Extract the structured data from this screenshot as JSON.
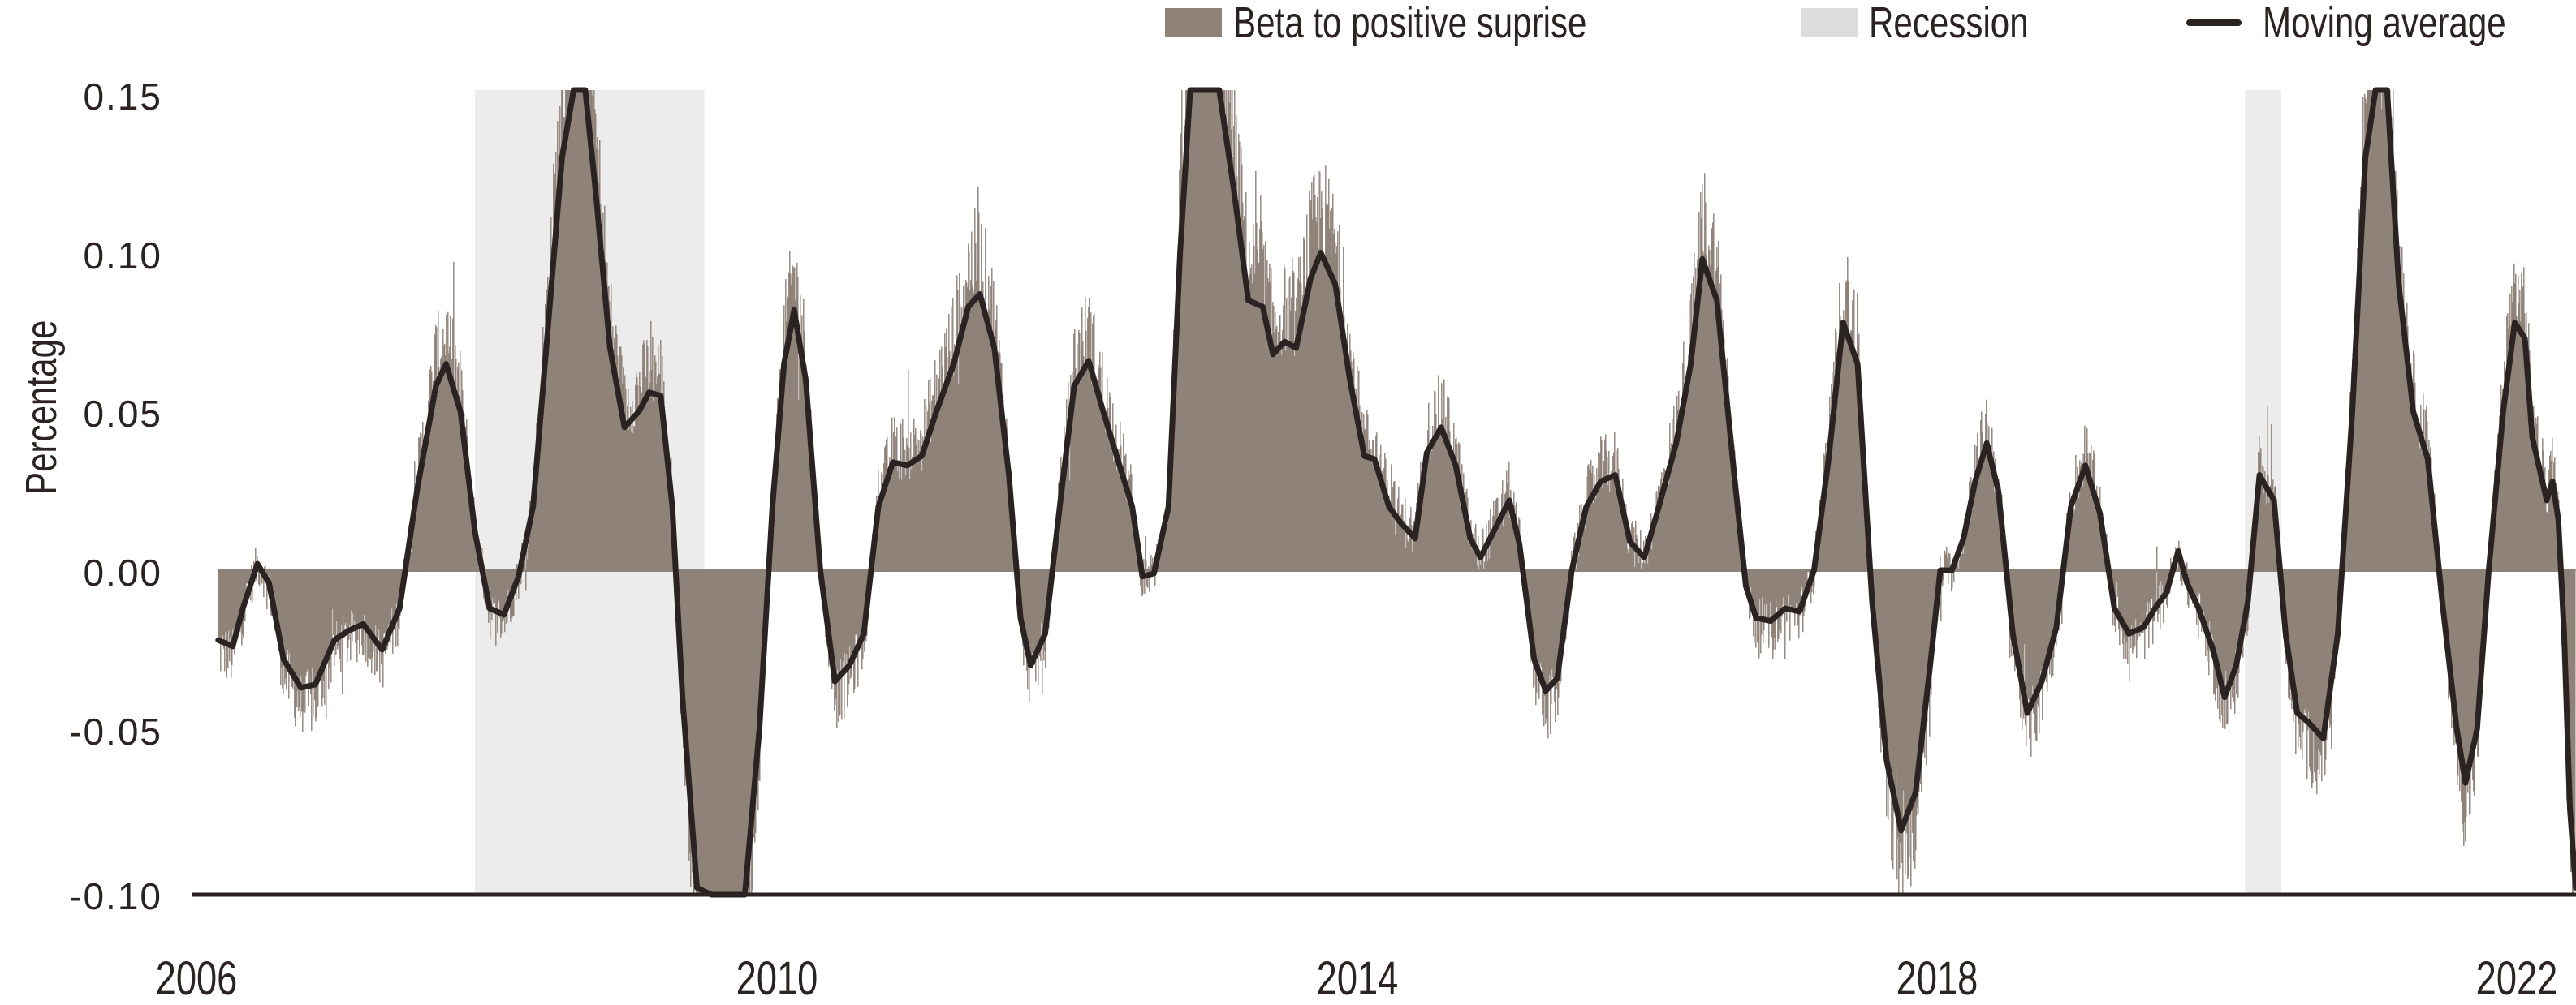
{
  "chart_data": {
    "type": "bar",
    "title": "",
    "xlabel": "",
    "ylabel": "Percentage",
    "ylim": [
      -0.1,
      0.15
    ],
    "xlim": [
      2006,
      2022.4
    ],
    "grid": false,
    "legend_position": "top-right",
    "legend": [
      {
        "label": "Beta to positive suprise",
        "kind": "bar",
        "color": "#8f8279"
      },
      {
        "label": "Recession",
        "kind": "area",
        "color": "#dcdcdc"
      },
      {
        "label": "Moving average",
        "kind": "line",
        "color": "#2b2321"
      }
    ],
    "yticks": [
      "0.15",
      "0.10",
      "0.05",
      "0.00",
      "-0.05",
      "-0.10"
    ],
    "ytick_values": [
      0.15,
      0.1,
      0.05,
      0.0,
      -0.05,
      -0.1
    ],
    "xticks": [
      "2006",
      "2010",
      "2014",
      "2018",
      "2022"
    ],
    "xtick_values": [
      2006,
      2010,
      2014,
      2018,
      2022
    ],
    "recessions": [
      {
        "start": 2007.92,
        "end": 2009.5
      },
      {
        "start": 2020.12,
        "end": 2020.37
      }
    ],
    "series": [
      {
        "name": "Moving average",
        "type": "line",
        "color": "#2b2321",
        "points": [
          [
            2006.15,
            -0.022
          ],
          [
            2006.25,
            -0.024
          ],
          [
            2006.32,
            -0.012
          ],
          [
            2006.42,
            0.002
          ],
          [
            2006.5,
            -0.004
          ],
          [
            2006.6,
            -0.028
          ],
          [
            2006.72,
            -0.037
          ],
          [
            2006.82,
            -0.036
          ],
          [
            2006.95,
            -0.022
          ],
          [
            2007.05,
            -0.019
          ],
          [
            2007.15,
            -0.017
          ],
          [
            2007.28,
            -0.025
          ],
          [
            2007.4,
            -0.012
          ],
          [
            2007.52,
            0.025
          ],
          [
            2007.65,
            0.058
          ],
          [
            2007.72,
            0.065
          ],
          [
            2007.82,
            0.05
          ],
          [
            2007.92,
            0.012
          ],
          [
            2008.02,
            -0.012
          ],
          [
            2008.12,
            -0.014
          ],
          [
            2008.22,
            -0.002
          ],
          [
            2008.32,
            0.02
          ],
          [
            2008.42,
            0.075
          ],
          [
            2008.52,
            0.13
          ],
          [
            2008.6,
            0.165
          ],
          [
            2008.68,
            0.16
          ],
          [
            2008.75,
            0.12
          ],
          [
            2008.85,
            0.07
          ],
          [
            2008.95,
            0.045
          ],
          [
            2009.05,
            0.05
          ],
          [
            2009.12,
            0.056
          ],
          [
            2009.2,
            0.055
          ],
          [
            2009.28,
            0.02
          ],
          [
            2009.35,
            -0.04
          ],
          [
            2009.45,
            -0.1
          ],
          [
            2009.55,
            -0.12
          ],
          [
            2009.68,
            -0.12
          ],
          [
            2009.78,
            -0.105
          ],
          [
            2009.88,
            -0.05
          ],
          [
            2009.97,
            0.02
          ],
          [
            2010.05,
            0.065
          ],
          [
            2010.12,
            0.082
          ],
          [
            2010.2,
            0.06
          ],
          [
            2010.3,
            0.0
          ],
          [
            2010.4,
            -0.035
          ],
          [
            2010.5,
            -0.03
          ],
          [
            2010.6,
            -0.02
          ],
          [
            2010.7,
            0.02
          ],
          [
            2010.8,
            0.034
          ],
          [
            2010.9,
            0.033
          ],
          [
            2011.0,
            0.036
          ],
          [
            2011.1,
            0.05
          ],
          [
            2011.22,
            0.065
          ],
          [
            2011.32,
            0.083
          ],
          [
            2011.4,
            0.087
          ],
          [
            2011.5,
            0.07
          ],
          [
            2011.6,
            0.03
          ],
          [
            2011.68,
            -0.015
          ],
          [
            2011.75,
            -0.03
          ],
          [
            2011.85,
            -0.02
          ],
          [
            2011.95,
            0.02
          ],
          [
            2012.05,
            0.058
          ],
          [
            2012.15,
            0.066
          ],
          [
            2012.25,
            0.05
          ],
          [
            2012.35,
            0.035
          ],
          [
            2012.45,
            0.02
          ],
          [
            2012.52,
            -0.002
          ],
          [
            2012.6,
            -0.001
          ],
          [
            2012.7,
            0.02
          ],
          [
            2012.78,
            0.1
          ],
          [
            2012.85,
            0.155
          ],
          [
            2012.95,
            0.17
          ],
          [
            2013.05,
            0.155
          ],
          [
            2013.15,
            0.12
          ],
          [
            2013.25,
            0.085
          ],
          [
            2013.35,
            0.083
          ],
          [
            2013.42,
            0.068
          ],
          [
            2013.5,
            0.072
          ],
          [
            2013.58,
            0.07
          ],
          [
            2013.68,
            0.092
          ],
          [
            2013.75,
            0.1
          ],
          [
            2013.85,
            0.09
          ],
          [
            2013.95,
            0.06
          ],
          [
            2014.05,
            0.036
          ],
          [
            2014.12,
            0.035
          ],
          [
            2014.22,
            0.02
          ],
          [
            2014.3,
            0.015
          ],
          [
            2014.4,
            0.01
          ],
          [
            2014.48,
            0.037
          ],
          [
            2014.58,
            0.045
          ],
          [
            2014.68,
            0.033
          ],
          [
            2014.78,
            0.01
          ],
          [
            2014.85,
            0.004
          ],
          [
            2014.95,
            0.013
          ],
          [
            2015.05,
            0.022
          ],
          [
            2015.12,
            0.008
          ],
          [
            2015.22,
            -0.028
          ],
          [
            2015.3,
            -0.038
          ],
          [
            2015.38,
            -0.034
          ],
          [
            2015.48,
            0.0
          ],
          [
            2015.58,
            0.02
          ],
          [
            2015.68,
            0.028
          ],
          [
            2015.78,
            0.03
          ],
          [
            2015.88,
            0.009
          ],
          [
            2015.98,
            0.004
          ],
          [
            2016.08,
            0.02
          ],
          [
            2016.2,
            0.04
          ],
          [
            2016.3,
            0.065
          ],
          [
            2016.38,
            0.098
          ],
          [
            2016.48,
            0.085
          ],
          [
            2016.6,
            0.03
          ],
          [
            2016.68,
            -0.005
          ],
          [
            2016.75,
            -0.015
          ],
          [
            2016.85,
            -0.016
          ],
          [
            2016.95,
            -0.012
          ],
          [
            2017.05,
            -0.013
          ],
          [
            2017.15,
            0.0
          ],
          [
            2017.25,
            0.035
          ],
          [
            2017.35,
            0.078
          ],
          [
            2017.45,
            0.065
          ],
          [
            2017.55,
            -0.01
          ],
          [
            2017.65,
            -0.06
          ],
          [
            2017.75,
            -0.082
          ],
          [
            2017.85,
            -0.07
          ],
          [
            2017.95,
            -0.03
          ],
          [
            2018.02,
            0.0
          ],
          [
            2018.1,
            0.0
          ],
          [
            2018.18,
            0.01
          ],
          [
            2018.26,
            0.028
          ],
          [
            2018.34,
            0.04
          ],
          [
            2018.42,
            0.025
          ],
          [
            2018.52,
            -0.02
          ],
          [
            2018.62,
            -0.045
          ],
          [
            2018.72,
            -0.035
          ],
          [
            2018.82,
            -0.018
          ],
          [
            2018.92,
            0.02
          ],
          [
            2019.02,
            0.033
          ],
          [
            2019.12,
            0.018
          ],
          [
            2019.22,
            -0.012
          ],
          [
            2019.32,
            -0.02
          ],
          [
            2019.42,
            -0.018
          ],
          [
            2019.5,
            -0.012
          ],
          [
            2019.58,
            -0.007
          ],
          [
            2019.66,
            0.006
          ],
          [
            2019.72,
            -0.004
          ],
          [
            2019.8,
            -0.012
          ],
          [
            2019.9,
            -0.025
          ],
          [
            2019.98,
            -0.04
          ],
          [
            2020.06,
            -0.03
          ],
          [
            2020.14,
            -0.01
          ],
          [
            2020.22,
            0.03
          ],
          [
            2020.32,
            0.022
          ],
          [
            2020.4,
            -0.02
          ],
          [
            2020.48,
            -0.045
          ],
          [
            2020.56,
            -0.048
          ],
          [
            2020.66,
            -0.053
          ],
          [
            2020.76,
            -0.02
          ],
          [
            2020.86,
            0.05
          ],
          [
            2020.95,
            0.13
          ],
          [
            2021.02,
            0.17
          ],
          [
            2021.1,
            0.155
          ],
          [
            2021.18,
            0.09
          ],
          [
            2021.28,
            0.05
          ],
          [
            2021.38,
            0.035
          ],
          [
            2021.48,
            -0.01
          ],
          [
            2021.58,
            -0.05
          ],
          [
            2021.64,
            -0.067
          ],
          [
            2021.72,
            -0.05
          ],
          [
            2021.8,
            0.0
          ],
          [
            2021.9,
            0.05
          ],
          [
            2021.98,
            0.078
          ],
          [
            2022.05,
            0.073
          ],
          [
            2022.1,
            0.042
          ],
          [
            2022.15,
            0.032
          ],
          [
            2022.2,
            0.022
          ],
          [
            2022.24,
            0.028
          ],
          [
            2022.28,
            0.016
          ],
          [
            2022.32,
            -0.02
          ],
          [
            2022.36,
            -0.075
          ],
          [
            2022.4,
            -0.1
          ]
        ]
      }
    ]
  },
  "legend": {
    "items": [
      {
        "label": "Beta to positive suprise"
      },
      {
        "label": "Recession"
      },
      {
        "label": "Moving average"
      }
    ]
  },
  "axes": {
    "y_label": "Percentage",
    "y_ticks": [
      "0.15",
      "0.10",
      "0.05",
      "0.00",
      "-0.05",
      "-0.10"
    ],
    "x_ticks": [
      "2006",
      "2010",
      "2014",
      "2018",
      "2022"
    ]
  },
  "colors": {
    "bar": "#8f8279",
    "recession": "#ececec",
    "recession_legend": "#dcdcdc",
    "line": "#2b2321",
    "axis": "#2b2321",
    "text": "#2b2321"
  }
}
